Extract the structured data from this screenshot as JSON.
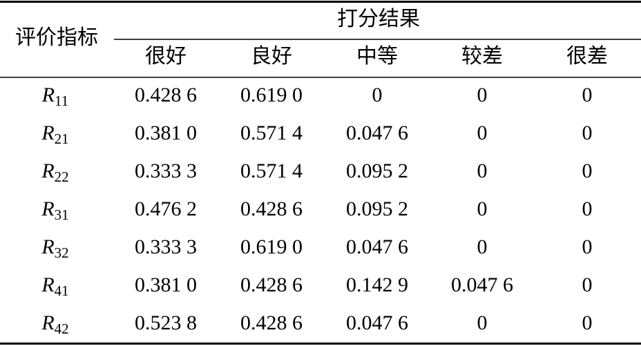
{
  "table": {
    "header": {
      "index": "评价指标",
      "group": "打分结果",
      "columns": [
        "很好",
        "良好",
        "中等",
        "较差",
        "很差"
      ]
    },
    "rows": [
      {
        "symbol": "R",
        "sub": "11",
        "cells": [
          "0.428 6",
          "0.619 0",
          "0",
          "0",
          "0"
        ]
      },
      {
        "symbol": "R",
        "sub": "21",
        "cells": [
          "0.381 0",
          "0.571 4",
          "0.047 6",
          "0",
          "0"
        ]
      },
      {
        "symbol": "R",
        "sub": "22",
        "cells": [
          "0.333 3",
          "0.571 4",
          "0.095 2",
          "0",
          "0"
        ]
      },
      {
        "symbol": "R",
        "sub": "31",
        "cells": [
          "0.476 2",
          "0.428 6",
          "0.095 2",
          "0",
          "0"
        ]
      },
      {
        "symbol": "R",
        "sub": "32",
        "cells": [
          "0.333 3",
          "0.619 0",
          "0.047 6",
          "0",
          "0"
        ]
      },
      {
        "symbol": "R",
        "sub": "41",
        "cells": [
          "0.381 0",
          "0.428 6",
          "0.142 9",
          "0.047 6",
          "0"
        ]
      },
      {
        "symbol": "R",
        "sub": "42",
        "cells": [
          "0.523 8",
          "0.428 6",
          "0.047 6",
          "0",
          "0"
        ]
      }
    ]
  }
}
